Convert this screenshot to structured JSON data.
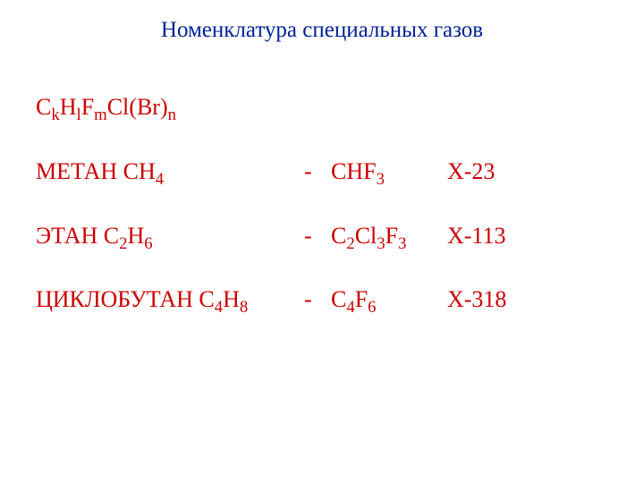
{
  "title": "Номенклатура специальных газов",
  "general_formula": {
    "parts": [
      {
        "text": "C",
        "sub": false
      },
      {
        "text": "k",
        "sub": true
      },
      {
        "text": "H",
        "sub": false
      },
      {
        "text": "l",
        "sub": true
      },
      {
        "text": "F",
        "sub": false
      },
      {
        "text": "m",
        "sub": true
      },
      {
        "text": "Cl(Br)",
        "sub": false
      },
      {
        "text": "n",
        "sub": true
      }
    ]
  },
  "rows": [
    {
      "name_parts": [
        {
          "text": "МЕТАН CH",
          "sub": false
        },
        {
          "text": "4",
          "sub": true
        }
      ],
      "dash": "-",
      "product_parts": [
        {
          "text": "CHF",
          "sub": false
        },
        {
          "text": "3",
          "sub": true
        }
      ],
      "label": "Х-23"
    },
    {
      "name_parts": [
        {
          "text": "ЭТАН C",
          "sub": false
        },
        {
          "text": "2",
          "sub": true
        },
        {
          "text": "H",
          "sub": false
        },
        {
          "text": "6",
          "sub": true
        }
      ],
      "dash": "-",
      "product_parts": [
        {
          "text": "C",
          "sub": false
        },
        {
          "text": "2",
          "sub": true
        },
        {
          "text": "Cl",
          "sub": false
        },
        {
          "text": "3",
          "sub": true
        },
        {
          "text": "F",
          "sub": false
        },
        {
          "text": "3",
          "sub": true
        }
      ],
      "label": "Х-113"
    },
    {
      "name_parts": [
        {
          "text": "ЦИКЛОБУТАН C",
          "sub": false
        },
        {
          "text": "4",
          "sub": true
        },
        {
          "text": "H",
          "sub": false
        },
        {
          "text": "8",
          "sub": true
        }
      ],
      "dash": "-",
      "product_parts": [
        {
          "text": "C",
          "sub": false
        },
        {
          "text": "4",
          "sub": true
        },
        {
          "text": "F",
          "sub": false
        },
        {
          "text": "6",
          "sub": true
        }
      ],
      "label": "Х-318"
    }
  ],
  "colors": {
    "title": "#002296",
    "content": "#cc0000",
    "background": "#ffffff"
  },
  "typography": {
    "title_fontsize": 25,
    "content_fontsize": 26,
    "font_family": "Times New Roman"
  }
}
